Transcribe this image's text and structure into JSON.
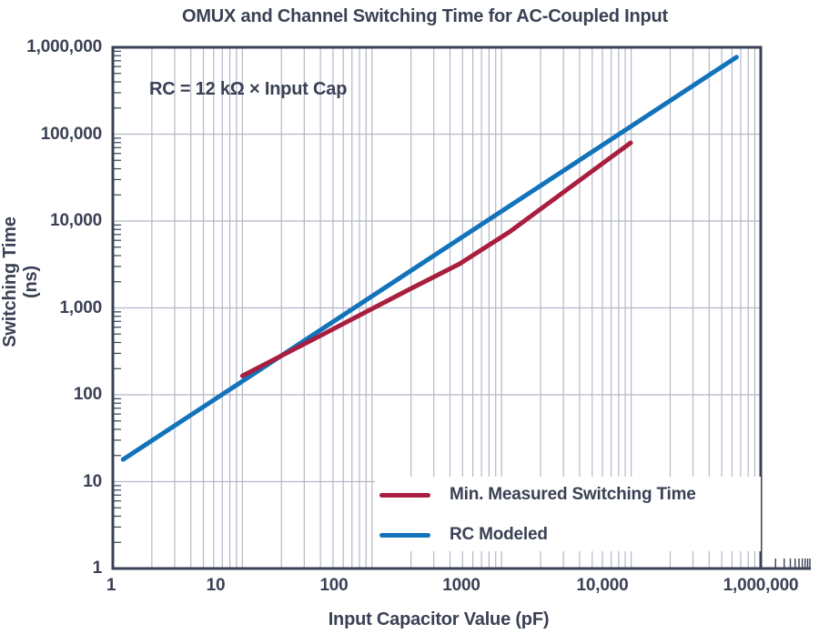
{
  "chart": {
    "title": "OMUX and Channel Switching Time for AC-Coupled Input",
    "annotation": "RC = 12 kΩ × Input Cap",
    "x_axis": {
      "label": "Input Capacitor Value (pF)",
      "tick_labels": [
        "1",
        "10",
        "100",
        "1000",
        "10,000",
        "1,000,000"
      ]
    },
    "y_axis": {
      "label": "Switching Time (ns)",
      "tick_labels": [
        "1",
        "10",
        "100",
        "1,000",
        "10,000",
        "100,000",
        "1,000,000"
      ]
    },
    "legend": [
      {
        "label": "Min. Measured Switching Time",
        "color": "#A91E3E"
      },
      {
        "label": "RC Modeled",
        "color": "#1273BA"
      }
    ]
  },
  "chart_data": {
    "type": "line",
    "title": "OMUX and Channel Switching Time for AC-Coupled Input",
    "xlabel": "Input Capacitor Value (pF)",
    "ylabel": "Switching Time (ns)",
    "xscale": "log",
    "yscale": "log",
    "xlim": [
      1,
      1000000
    ],
    "ylim": [
      1,
      1000000
    ],
    "grid": true,
    "legend_position": "lower right",
    "annotation": "RC = 12 kΩ × Input Cap",
    "series": [
      {
        "name": "Min. Measured Switching Time",
        "color": "#A91E3E",
        "x": [
          10,
          39,
          195,
          475,
          1150,
          9900
        ],
        "y": [
          165,
          470,
          1640,
          3220,
          7490,
          79500
        ]
      },
      {
        "name": "RC Modeled",
        "color": "#1273BA",
        "x": [
          1.2,
          65000
        ],
        "y": [
          18,
          770000
        ]
      }
    ]
  },
  "style": {
    "grid_color": "#b4b8c7",
    "axis_color": "#3a4154",
    "text_color": "#3a4154"
  }
}
